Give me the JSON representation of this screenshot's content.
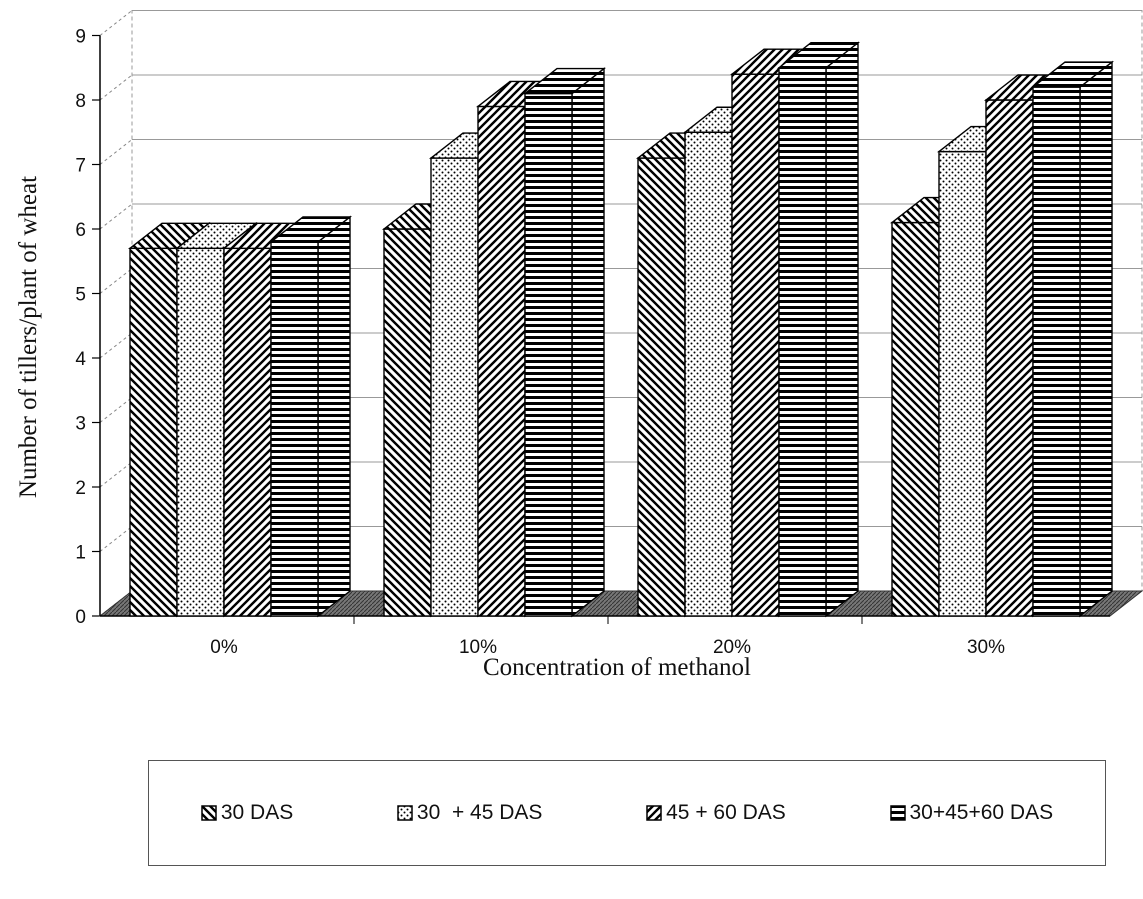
{
  "chart_data": {
    "type": "bar",
    "title": "",
    "xlabel": "Concentration of methanol",
    "ylabel": "Number of tillers/plant of wheat",
    "categories": [
      "0%",
      "10%",
      "20%",
      "30%"
    ],
    "ylim": [
      0,
      9
    ],
    "yticks": [
      0,
      1,
      2,
      3,
      4,
      5,
      6,
      7,
      8,
      9
    ],
    "grid": true,
    "legend_position": "bottom",
    "series": [
      {
        "name": "30 DAS",
        "values": [
          5.7,
          6.0,
          7.1,
          6.1
        ],
        "pattern": "diag-down"
      },
      {
        "name": "30  + 45 DAS",
        "values": [
          5.7,
          7.1,
          7.5,
          7.2
        ],
        "pattern": "dots"
      },
      {
        "name": "45 + 60 DAS",
        "values": [
          5.7,
          7.9,
          8.4,
          8.0
        ],
        "pattern": "diag-up"
      },
      {
        "name": "30+45+60 DAS",
        "values": [
          5.8,
          8.1,
          8.5,
          8.2
        ],
        "pattern": "horizontal"
      }
    ]
  }
}
